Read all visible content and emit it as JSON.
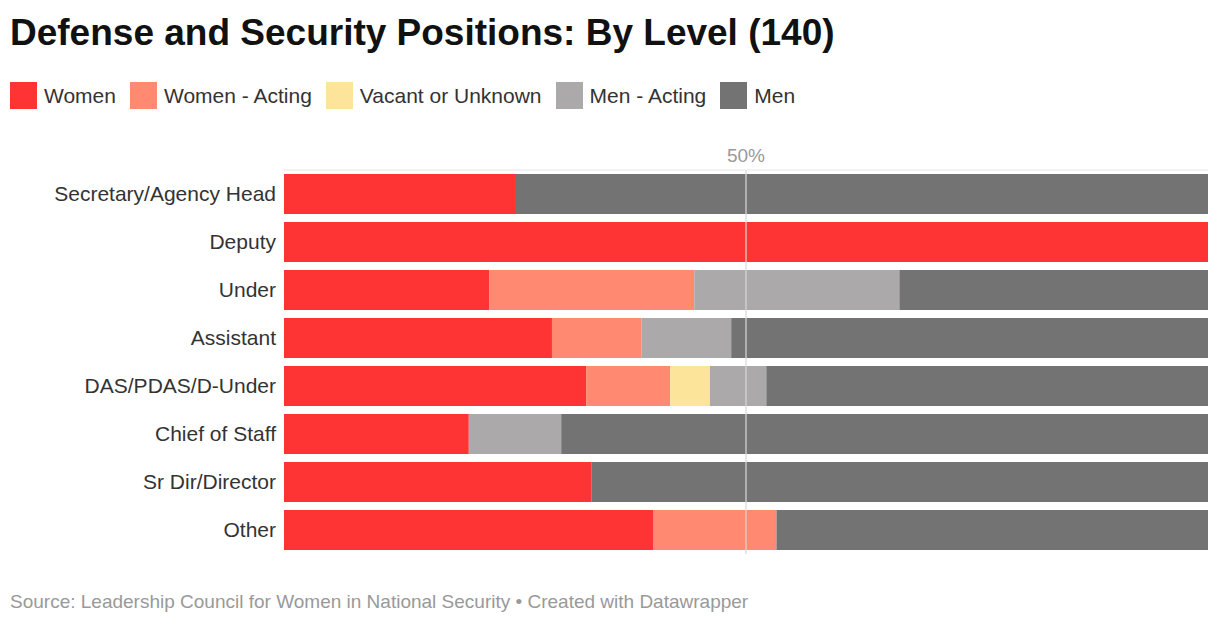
{
  "chart_data": {
    "type": "bar",
    "title": "Defense and Security Positions: By Level (140)",
    "source": "Source: Leadership Council for Women in National Security • Created with Datawrapper",
    "orientation": "horizontal",
    "stacked": true,
    "grid": true,
    "legend": "top",
    "categories": [
      "Secretary/Agency Head",
      "Deputy",
      "Under",
      "Assistant",
      "DAS/PDAS/D-Under",
      "Chief of Staff",
      "Sr Dir/Director",
      "Other"
    ],
    "xlim": [
      0,
      100
    ],
    "xticks": [
      {
        "value": 50,
        "label": "50%"
      }
    ],
    "series": [
      {
        "name": "Women",
        "color": "#fe3334",
        "values": [
          25,
          100,
          22.2,
          29.0,
          32.7,
          20,
          33.3,
          40.0
        ]
      },
      {
        "name": "Women - Acting",
        "color": "#ff8a71",
        "values": [
          0,
          0,
          22.2,
          9.7,
          9.1,
          0,
          0,
          13.3
        ]
      },
      {
        "name": "Vacant or Unknown",
        "color": "#fde49b",
        "values": [
          0,
          0,
          0,
          0,
          4.3,
          0,
          0,
          0
        ]
      },
      {
        "name": "Men - Acting",
        "color": "#aba9a9",
        "values": [
          0,
          0,
          22.2,
          9.7,
          6.1,
          10,
          0,
          0
        ]
      },
      {
        "name": "Men",
        "color": "#737373",
        "values": [
          75,
          0,
          33.4,
          51.6,
          47.8,
          70,
          66.7,
          46.7
        ]
      }
    ]
  }
}
